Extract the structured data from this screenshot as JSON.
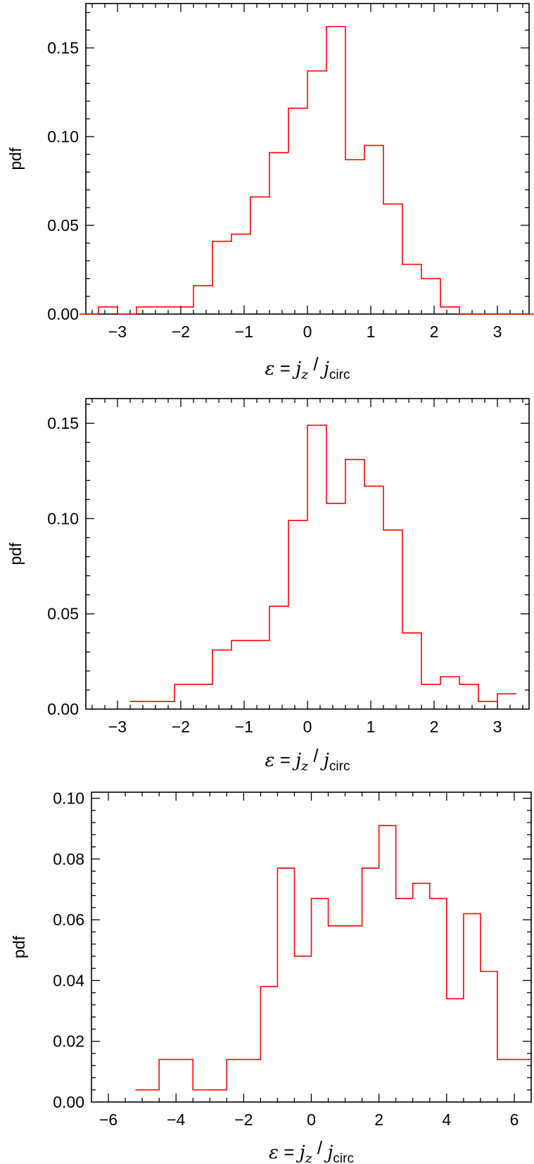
{
  "chart_data": [
    {
      "type": "bar",
      "style": "step-histogram",
      "series_color": "#ff0000",
      "ylabel": "pdf",
      "xlabel": {
        "epsilon": "ε",
        "eq": " = ",
        "jz_j": "j",
        "jz_sub": "z",
        "slash": " / ",
        "jc_j": "j",
        "jc_sub": "circ"
      },
      "xlim": [
        -3.5,
        3.5
      ],
      "ylim": [
        0,
        0.175
      ],
      "xticks": [
        "−3",
        "−2",
        "−1",
        "0",
        "1",
        "2",
        "3"
      ],
      "xtick_values": [
        -3,
        -2,
        -1,
        0,
        1,
        2,
        3
      ],
      "yticks": [
        "0.00",
        "0.05",
        "0.10",
        "0.15"
      ],
      "ytick_values": [
        0,
        0.05,
        0.1,
        0.15
      ],
      "bin_edges": [
        -3.6,
        -3.3,
        -3.0,
        -2.7,
        -2.4,
        -2.1,
        -1.8,
        -1.5,
        -1.2,
        -0.9,
        -0.6,
        -0.3,
        0.0,
        0.3,
        0.6,
        0.9,
        1.2,
        1.5,
        1.8,
        2.1,
        2.4,
        2.7,
        3.0,
        3.3,
        3.6
      ],
      "values": [
        0.0,
        0.004,
        0.0,
        0.004,
        0.004,
        0.004,
        0.016,
        0.041,
        0.045,
        0.066,
        0.091,
        0.116,
        0.137,
        0.162,
        0.087,
        0.095,
        0.062,
        0.028,
        0.02,
        0.004,
        0.0,
        0.0,
        0.0,
        0.0
      ]
    },
    {
      "type": "bar",
      "style": "step-histogram",
      "series_color": "#ff0000",
      "ylabel": "pdf",
      "xlabel": {
        "epsilon": "ε",
        "eq": " = ",
        "jz_j": "j",
        "jz_sub": "z",
        "slash": " / ",
        "jc_j": "j",
        "jc_sub": "circ"
      },
      "xlim": [
        -3.5,
        3.5
      ],
      "ylim": [
        0,
        0.163
      ],
      "xticks": [
        "−3",
        "−2",
        "−1",
        "0",
        "1",
        "2",
        "3"
      ],
      "xtick_values": [
        -3,
        -2,
        -1,
        0,
        1,
        2,
        3
      ],
      "yticks": [
        "0.00",
        "0.05",
        "0.10",
        "0.15"
      ],
      "ytick_values": [
        0,
        0.05,
        0.1,
        0.15
      ],
      "bin_edges": [
        -2.8,
        -2.1,
        -1.5,
        -1.2,
        -0.6,
        -0.3,
        0.0,
        0.3,
        0.6,
        0.9,
        1.2,
        1.5,
        1.8,
        2.1,
        2.4,
        2.7,
        3.0,
        3.3
      ],
      "values": [
        0.004,
        0.013,
        0.031,
        0.036,
        0.054,
        0.099,
        0.149,
        0.108,
        0.131,
        0.117,
        0.094,
        0.04,
        0.013,
        0.017,
        0.013,
        0.004,
        0.008
      ]
    },
    {
      "type": "bar",
      "style": "step-histogram",
      "series_color": "#ff0000",
      "ylabel": "pdf",
      "xlabel": {
        "epsilon": "ε",
        "eq": " = ",
        "jz_j": "j",
        "jz_sub": "z",
        "slash": " / ",
        "jc_j": "j",
        "jc_sub": "circ"
      },
      "xlim": [
        -6.5,
        6.5
      ],
      "ylim": [
        0,
        0.102
      ],
      "xticks": [
        "−6",
        "−4",
        "−2",
        "0",
        "2",
        "4",
        "6"
      ],
      "xtick_values": [
        -6,
        -4,
        -2,
        0,
        2,
        4,
        6
      ],
      "yticks": [
        "0.00",
        "0.02",
        "0.04",
        "0.06",
        "0.08",
        "0.10"
      ],
      "ytick_values": [
        0,
        0.02,
        0.04,
        0.06,
        0.08,
        0.1
      ],
      "bin_edges": [
        -5.2,
        -4.5,
        -3.5,
        -2.5,
        -1.5,
        -1.0,
        -0.5,
        0.0,
        0.5,
        1.5,
        2.0,
        2.5,
        3.0,
        3.5,
        4.0,
        4.5,
        5.0,
        5.5,
        6.5
      ],
      "values": [
        0.004,
        0.014,
        0.004,
        0.014,
        0.038,
        0.077,
        0.048,
        0.067,
        0.058,
        0.077,
        0.091,
        0.067,
        0.072,
        0.067,
        0.034,
        0.062,
        0.043,
        0.014
      ]
    }
  ]
}
